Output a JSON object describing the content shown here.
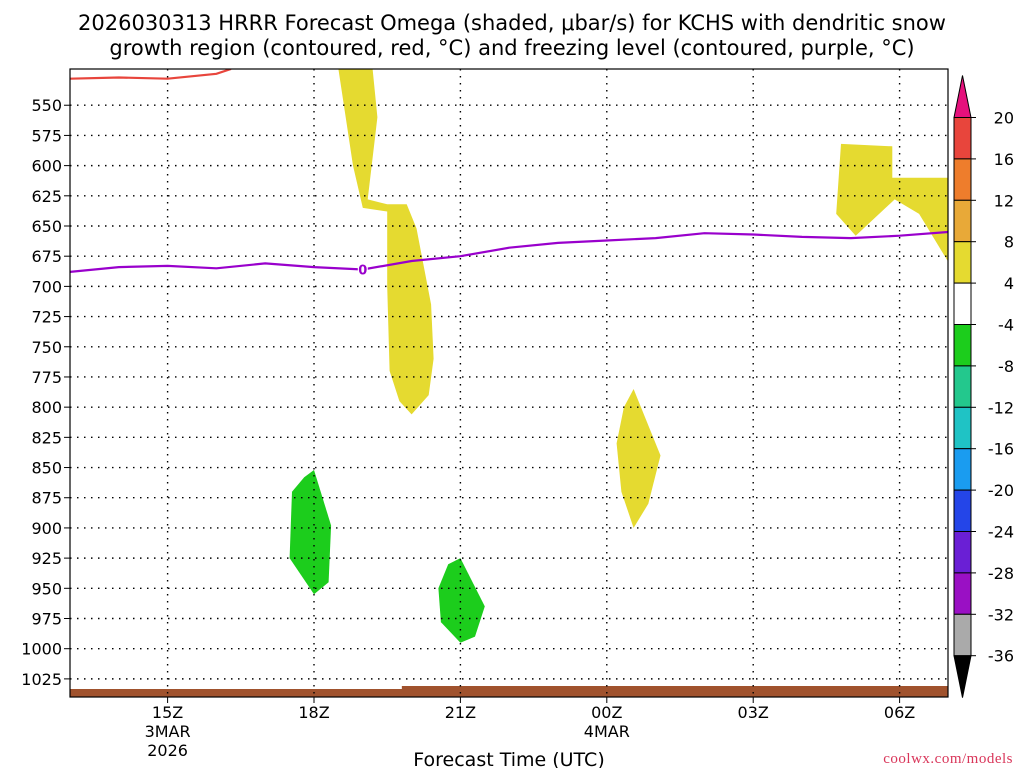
{
  "chart_data": {
    "type": "time-height contour",
    "title_line1": "2026030313 HRRR Forecast Omega (shaded, μbar/s) for KCHS with dendritic snow",
    "title_line2": "growth region (contoured, red, °C) and freezing level (contoured, purple, °C)",
    "xlabel": "Forecast Time (UTC)",
    "credit": "coolwx.com/models",
    "x_domain_hours": [
      13,
      31
    ],
    "x_ticks": [
      {
        "hour": 15,
        "label": "15Z",
        "sub1": "3MAR",
        "sub2": "2026"
      },
      {
        "hour": 18,
        "label": "18Z",
        "sub1": "",
        "sub2": ""
      },
      {
        "hour": 21,
        "label": "21Z",
        "sub1": "",
        "sub2": ""
      },
      {
        "hour": 24,
        "label": "00Z",
        "sub1": "4MAR",
        "sub2": ""
      },
      {
        "hour": 27,
        "label": "03Z",
        "sub1": "",
        "sub2": ""
      },
      {
        "hour": 30,
        "label": "06Z",
        "sub1": "",
        "sub2": ""
      }
    ],
    "y_domain_hPa": [
      520,
      1040
    ],
    "y_ticks": [
      550,
      575,
      600,
      625,
      650,
      675,
      700,
      725,
      750,
      775,
      800,
      825,
      850,
      875,
      900,
      925,
      950,
      975,
      1000,
      1025
    ],
    "freezing_level": {
      "label": "0",
      "label_hour": 19,
      "color": "#9900cc",
      "points": [
        [
          13,
          688
        ],
        [
          14,
          684
        ],
        [
          15,
          683
        ],
        [
          16,
          685
        ],
        [
          17,
          681
        ],
        [
          18,
          684
        ],
        [
          19,
          686
        ],
        [
          20,
          679
        ],
        [
          21,
          675
        ],
        [
          22,
          668
        ],
        [
          23,
          664
        ],
        [
          24,
          662
        ],
        [
          25,
          660
        ],
        [
          26,
          656
        ],
        [
          27,
          657
        ],
        [
          28,
          659
        ],
        [
          29,
          660
        ],
        [
          30,
          658
        ],
        [
          31,
          655
        ]
      ]
    },
    "dgz_contour": {
      "color": "#e8453c",
      "points": [
        [
          13,
          528
        ],
        [
          14,
          527
        ],
        [
          15,
          528
        ],
        [
          16,
          524
        ],
        [
          16.3,
          520
        ]
      ]
    },
    "surface_fill_color": "#a0522d",
    "omega_regions": [
      {
        "class": "4 to 8",
        "color": "#e5da30",
        "points": [
          [
            18.5,
            520
          ],
          [
            19.2,
            520
          ],
          [
            19.3,
            560
          ],
          [
            19.1,
            628
          ],
          [
            19.5,
            632
          ],
          [
            19.9,
            632
          ],
          [
            20.1,
            652
          ],
          [
            20.4,
            715
          ],
          [
            20.45,
            760
          ],
          [
            20.35,
            790
          ],
          [
            20.0,
            806
          ],
          [
            19.75,
            795
          ],
          [
            19.55,
            770
          ],
          [
            19.5,
            700
          ],
          [
            19.5,
            638
          ],
          [
            19.0,
            635
          ],
          [
            18.8,
            600
          ]
        ]
      },
      {
        "class": "4 to 8",
        "color": "#e5da30",
        "points": [
          [
            28.8,
            582
          ],
          [
            29.85,
            584
          ],
          [
            29.85,
            610
          ],
          [
            31.0,
            610
          ],
          [
            31.25,
            645
          ],
          [
            31.0,
            680
          ],
          [
            30.4,
            640
          ],
          [
            29.9,
            628
          ],
          [
            29.1,
            658
          ],
          [
            28.7,
            640
          ]
        ]
      },
      {
        "class": "4 to 8",
        "color": "#e5da30",
        "points": [
          [
            24.55,
            785
          ],
          [
            25.1,
            840
          ],
          [
            24.85,
            880
          ],
          [
            24.55,
            900
          ],
          [
            24.3,
            870
          ],
          [
            24.2,
            830
          ],
          [
            24.35,
            800
          ]
        ]
      },
      {
        "class": "-8 to -4",
        "color": "#1ccd1c",
        "points": [
          [
            18.0,
            852
          ],
          [
            18.35,
            898
          ],
          [
            18.3,
            945
          ],
          [
            18.0,
            955
          ],
          [
            17.5,
            925
          ],
          [
            17.55,
            870
          ],
          [
            17.8,
            858
          ]
        ]
      },
      {
        "class": "-8 to -4",
        "color": "#1ccd1c",
        "points": [
          [
            21.0,
            925
          ],
          [
            21.5,
            965
          ],
          [
            21.3,
            990
          ],
          [
            21.0,
            995
          ],
          [
            20.6,
            978
          ],
          [
            20.55,
            950
          ],
          [
            20.75,
            930
          ]
        ]
      }
    ]
  },
  "colorbar": {
    "labels": [
      "20",
      "16",
      "12",
      "8",
      "4",
      "-4",
      "-8",
      "-12",
      "-16",
      "-20",
      "-24",
      "-28",
      "-32",
      "-36"
    ],
    "colors": [
      "#e8453c",
      "#ee7d2c",
      "#e8a938",
      "#e5da30",
      "#ffffff",
      "#1ccd1c",
      "#23c88d",
      "#1fc3c5",
      "#1a9cf0",
      "#2445e8",
      "#6a1fd5",
      "#9a10c4",
      "#aaaaaa"
    ],
    "top_arrow_color": "#e5117c",
    "bottom_arrow_color": "#000000"
  }
}
